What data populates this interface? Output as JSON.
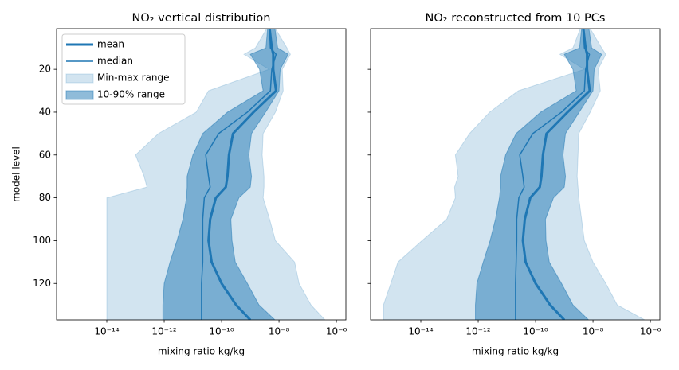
{
  "chart_data": [
    {
      "type": "line",
      "title": "NO₂ vertical distribution",
      "xlabel": "mixing ratio kg/kg",
      "ylabel": "model level",
      "xscale": "log",
      "xlim": [
        1.78e-16,
        2.14e-06
      ],
      "xticks": [
        {
          "value": 1e-14,
          "label": "10⁻¹⁴"
        },
        {
          "value": 1e-12,
          "label": "10⁻¹²"
        },
        {
          "value": 1e-10,
          "label": "10⁻¹⁰"
        },
        {
          "value": 1e-08,
          "label": "10⁻⁸"
        },
        {
          "value": 1e-06,
          "label": "10⁻⁶"
        }
      ],
      "ylim": [
        1,
        137
      ],
      "y_inverted": true,
      "yticks": [
        20,
        40,
        60,
        80,
        100,
        120
      ],
      "show_ytick_labels": true,
      "legend": "upper left",
      "levels": [
        1,
        10,
        13,
        20,
        30,
        40,
        50,
        60,
        70,
        75,
        80,
        90,
        100,
        110,
        120,
        130,
        137
      ],
      "series": [
        {
          "name": "mean",
          "color": "#1f77b4",
          "linewidth": 3,
          "values": [
            4.7e-09,
            5.6e-09,
            6.3e-09,
            6.3e-09,
            7.9e-09,
            1.3e-09,
            2.5e-10,
            1.8e-10,
            1.6e-10,
            1.4e-10,
            6.3e-11,
            4e-11,
            3.5e-11,
            4.5e-11,
            1e-10,
            3.2e-10,
            1e-09
          ]
        },
        {
          "name": "median",
          "color": "#1f77b4",
          "linewidth": 1.5,
          "values": [
            4.7e-09,
            5e-09,
            7.9e-09,
            5.6e-09,
            5e-09,
            7.9e-10,
            7.9e-11,
            2.8e-11,
            3.5e-11,
            4e-11,
            2.5e-11,
            2.2e-11,
            2.2e-11,
            2.2e-11,
            2e-11,
            2e-11,
            2e-11
          ]
        },
        {
          "name": "Min-max range",
          "color": "#1f77b4",
          "opacity": 0.2,
          "lower": [
            3.7e-09,
            1.5e-09,
            6e-10,
            4.5e-09,
            3.5e-11,
            1.3e-11,
            6.3e-13,
            1e-13,
            2e-13,
            2.5e-13,
            1e-14,
            1e-14,
            1e-14,
            1e-14,
            1e-14,
            1e-14,
            1e-14
          ],
          "upper": [
            7.5e-09,
            1.9e-08,
            2.5e-08,
            1.3e-08,
            1.4e-08,
            7.5e-09,
            2.8e-09,
            2.6e-09,
            3e-09,
            3e-09,
            2.8e-09,
            4.7e-09,
            7.5e-09,
            3.5e-08,
            5e-08,
            1.3e-07,
            4e-07
          ]
        },
        {
          "name": "10-90% range",
          "color": "#1f77b4",
          "opacity": 0.5,
          "lower": [
            4e-09,
            3.5e-09,
            1e-09,
            2.1e-09,
            2.8e-09,
            1.6e-10,
            2.2e-11,
            1e-11,
            6.3e-12,
            6.3e-12,
            6e-12,
            4.5e-12,
            2.8e-12,
            1.6e-12,
            1e-12,
            9e-13,
            9e-13
          ],
          "upper": [
            7.2e-09,
            9e-09,
            2.1e-08,
            1.1e-08,
            1e-08,
            3.4e-09,
            1.1e-09,
            8.9e-10,
            1.1e-09,
            1e-09,
            4e-10,
            2.1e-10,
            2.3e-10,
            3e-10,
            7.9e-10,
            2e-09,
            7.2e-09
          ]
        }
      ]
    },
    {
      "type": "line",
      "title": "NO₂ reconstructed from 10 PCs",
      "xlabel": "mixing ratio kg/kg",
      "xscale": "log",
      "xlim": [
        1.78e-16,
        2.14e-06
      ],
      "xticks": [
        {
          "value": 1e-14,
          "label": "10⁻¹⁴"
        },
        {
          "value": 1e-12,
          "label": "10⁻¹²"
        },
        {
          "value": 1e-10,
          "label": "10⁻¹⁰"
        },
        {
          "value": 1e-08,
          "label": "10⁻⁸"
        },
        {
          "value": 1e-06,
          "label": "10⁻⁶"
        }
      ],
      "ylim": [
        1,
        137
      ],
      "y_inverted": true,
      "yticks": [
        20,
        40,
        60,
        80,
        100,
        120
      ],
      "show_ytick_labels": false,
      "levels": [
        1,
        10,
        13,
        20,
        30,
        40,
        50,
        60,
        70,
        75,
        80,
        90,
        100,
        110,
        120,
        130,
        137
      ],
      "series": [
        {
          "color": "#1f77b4",
          "linewidth": 3,
          "values": [
            4.6e-09,
            5.5e-09,
            6.2e-09,
            6.2e-09,
            7.7e-09,
            1.3e-09,
            2.4e-10,
            1.8e-10,
            1.6e-10,
            1.4e-10,
            6.5e-11,
            4.2e-11,
            3.6e-11,
            4.5e-11,
            1e-10,
            3.2e-10,
            1e-09
          ]
        },
        {
          "color": "#1f77b4",
          "linewidth": 1.5,
          "values": [
            4.6e-09,
            5e-09,
            7.5e-09,
            5.5e-09,
            5e-09,
            8e-10,
            8e-11,
            2.8e-11,
            3.6e-11,
            4e-11,
            2.6e-11,
            2.2e-11,
            2.2e-11,
            2.1e-11,
            2e-11,
            2e-11,
            2e-11
          ]
        },
        {
          "color": "#1f77b4",
          "opacity": 0.2,
          "lower": [
            3.6e-09,
            2e-09,
            7e-10,
            5e-09,
            2.5e-11,
            2.5e-12,
            5e-13,
            1.6e-13,
            2e-13,
            1.5e-13,
            1.6e-13,
            8e-14,
            1.1e-14,
            1.6e-15,
            9e-16,
            5e-16,
            5e-16
          ],
          "upper": [
            8e-09,
            2e-08,
            2.8e-08,
            1.5e-08,
            1.8e-08,
            8e-09,
            3.2e-09,
            3e-09,
            2.8e-09,
            3e-09,
            3.2e-09,
            4e-09,
            5e-09,
            1e-08,
            2.8e-08,
            7e-08,
            6.3e-07
          ]
        },
        {
          "color": "#1f77b4",
          "opacity": 0.5,
          "lower": [
            4e-09,
            3.4e-09,
            1e-09,
            2e-09,
            2.6e-09,
            1.5e-10,
            2.1e-11,
            9e-12,
            6e-12,
            6e-12,
            5.5e-12,
            4e-12,
            2.6e-12,
            1.5e-12,
            9e-13,
            8e-13,
            8e-13
          ],
          "upper": [
            7.2e-09,
            9e-09,
            2e-08,
            1.1e-08,
            1e-08,
            3.3e-09,
            1.1e-09,
            9e-10,
            1.1e-09,
            1e-09,
            4.2e-10,
            2.2e-10,
            2.3e-10,
            3e-10,
            8e-10,
            2e-09,
            7e-09
          ]
        }
      ]
    }
  ]
}
